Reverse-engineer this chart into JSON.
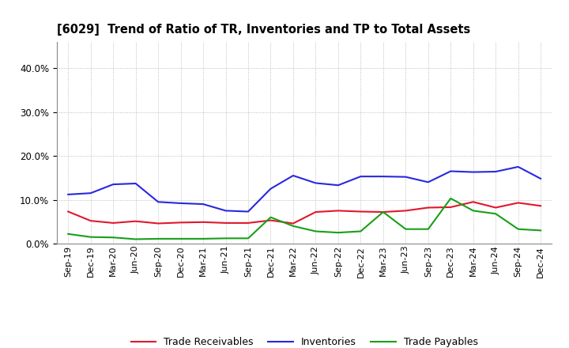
{
  "title": "[6029]  Trend of Ratio of TR, Inventories and TP to Total Assets",
  "x_labels": [
    "Sep-19",
    "Dec-19",
    "Mar-20",
    "Jun-20",
    "Sep-20",
    "Dec-20",
    "Mar-21",
    "Jun-21",
    "Sep-21",
    "Dec-21",
    "Mar-22",
    "Jun-22",
    "Sep-22",
    "Dec-22",
    "Mar-23",
    "Jun-23",
    "Sep-23",
    "Dec-23",
    "Mar-24",
    "Jun-24",
    "Sep-24",
    "Dec-24"
  ],
  "trade_receivables": [
    0.073,
    0.052,
    0.047,
    0.051,
    0.046,
    0.048,
    0.049,
    0.047,
    0.047,
    0.053,
    0.046,
    0.072,
    0.075,
    0.073,
    0.072,
    0.075,
    0.082,
    0.083,
    0.095,
    0.082,
    0.093,
    0.086
  ],
  "inventories": [
    0.112,
    0.115,
    0.135,
    0.137,
    0.095,
    0.092,
    0.09,
    0.075,
    0.073,
    0.125,
    0.155,
    0.138,
    0.133,
    0.153,
    0.153,
    0.152,
    0.14,
    0.165,
    0.163,
    0.164,
    0.175,
    0.148
  ],
  "trade_payables": [
    0.022,
    0.015,
    0.014,
    0.01,
    0.011,
    0.011,
    0.011,
    0.012,
    0.012,
    0.06,
    0.04,
    0.028,
    0.025,
    0.028,
    0.072,
    0.033,
    0.033,
    0.103,
    0.075,
    0.068,
    0.033,
    0.03
  ],
  "tr_color": "#e0182d",
  "inv_color": "#2828e0",
  "tp_color": "#18a018",
  "ylim": [
    0.0,
    0.46
  ],
  "yticks": [
    0.0,
    0.1,
    0.2,
    0.3,
    0.4
  ],
  "background_color": "#ffffff",
  "grid_color": "#999999",
  "legend_labels": [
    "Trade Receivables",
    "Inventories",
    "Trade Payables"
  ],
  "figwidth": 7.2,
  "figheight": 4.4,
  "dpi": 100
}
